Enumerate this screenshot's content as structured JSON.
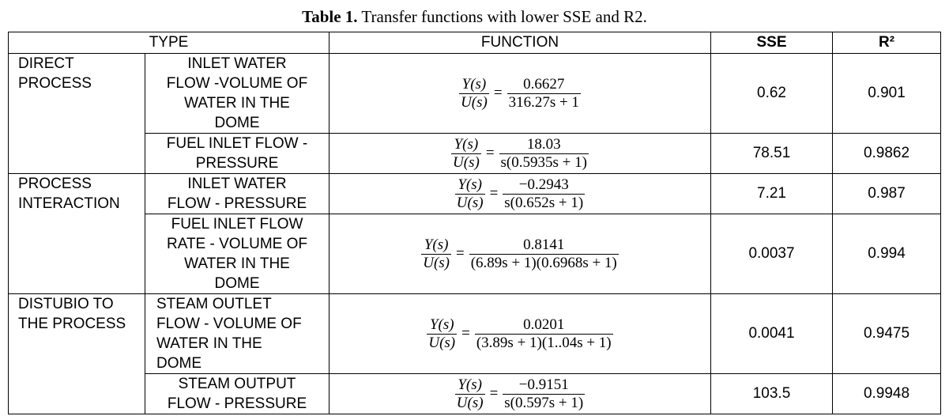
{
  "caption": {
    "label": "Table 1.",
    "text": " Transfer functions with lower SSE and R2."
  },
  "headers": {
    "type": "TYPE",
    "function": "FUNCTION",
    "sse": "SSE",
    "r2": "R²"
  },
  "groups": [
    {
      "lines": [
        "DIRECT",
        "PROCESS"
      ]
    },
    {
      "lines": [
        "PROCESS",
        "INTERACTION"
      ]
    },
    {
      "lines": [
        "DISTUBIO TO",
        "THE PROCESS"
      ]
    }
  ],
  "rows": [
    {
      "subtype": [
        "INLET WATER",
        "FLOW -VOLUME OF",
        "WATER IN THE",
        "DOME"
      ],
      "lhs_num": "Y(s)",
      "lhs_den": "U(s)",
      "rhs_num": "0.6627",
      "rhs_den": "316.27s + 1",
      "sse": "0.62",
      "r2": "0.901"
    },
    {
      "subtype": [
        "FUEL INLET FLOW -",
        "PRESSURE"
      ],
      "lhs_num": "Y(s)",
      "lhs_den": "U(s)",
      "rhs_num": "18.03",
      "rhs_den": "s(0.5935s + 1)",
      "sse": "78.51",
      "r2": "0.9862"
    },
    {
      "subtype": [
        "INLET WATER",
        "FLOW - PRESSURE"
      ],
      "lhs_num": "Y(s)",
      "lhs_den": "U(s)",
      "rhs_num": "−0.2943",
      "rhs_den": "s(0.652s + 1)",
      "sse": "7.21",
      "r2": "0.987"
    },
    {
      "subtype": [
        "FUEL INLET FLOW",
        "RATE - VOLUME OF",
        "WATER IN THE",
        "DOME"
      ],
      "lhs_num": "Y(s)",
      "lhs_den": "U(s)",
      "rhs_num": "0.8141",
      "rhs_den": "(6.89s + 1)(0.6968s + 1)",
      "sse": "0.0037",
      "r2": "0.994"
    },
    {
      "subtype": [
        "STEAM OUTLET",
        "FLOW - VOLUME OF",
        "WATER IN THE",
        "DOME"
      ],
      "lhs_num": "Y(s)",
      "lhs_den": "U(s)",
      "rhs_num": "0.0201",
      "rhs_den": "(3.89s + 1)(1..04s + 1)",
      "sse": "0.0041",
      "r2": "0.9475"
    },
    {
      "subtype": [
        "STEAM OUTPUT",
        "FLOW - PRESSURE"
      ],
      "lhs_num": "Y(s)",
      "lhs_den": "U(s)",
      "rhs_num": "−0.9151",
      "rhs_den": "s(0.597s + 1)",
      "sse": "103.5",
      "r2": "0.9948"
    }
  ]
}
